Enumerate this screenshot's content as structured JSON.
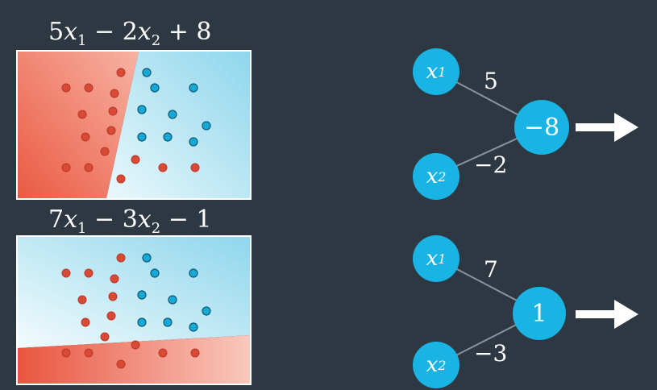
{
  "colors": {
    "background": "#2d3842",
    "red_region": "#ee6a52",
    "blue_region": "#a8e0ef",
    "red_point": "#d94a35",
    "blue_point": "#16a9d6",
    "node": "#19b4e3",
    "edge": "#8a939b"
  },
  "top": {
    "formula": {
      "c1": "5",
      "t1": "x",
      "s1": "1",
      "op1": " − ",
      "c2": "2",
      "t2": "x",
      "s2": "2",
      "tail": " + 8"
    },
    "network": {
      "in1_var": "x",
      "in1_sub": "1",
      "in2_var": "x",
      "in2_sub": "2",
      "w1": "5",
      "w2": "−2",
      "out": "−8"
    }
  },
  "bottom": {
    "formula": {
      "c1": "7",
      "t1": "x",
      "s1": "1",
      "op1": " − ",
      "c2": "3",
      "t2": "x",
      "s2": "2",
      "tail": " − 1"
    },
    "network": {
      "in1_var": "x",
      "in1_sub": "1",
      "in2_var": "x",
      "in2_sub": "2",
      "w1": "7",
      "w2": "−3",
      "out": "1"
    }
  },
  "icons": [
    "right-arrow-icon",
    "right-arrow-icon"
  ]
}
